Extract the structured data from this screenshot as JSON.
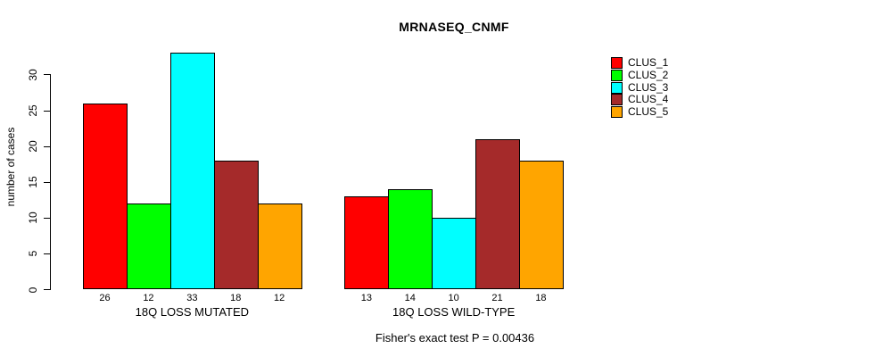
{
  "chart_data": {
    "type": "bar",
    "title": "MRNASEQ_CNMF",
    "ylabel": "number of cases",
    "ylim": [
      0,
      33
    ],
    "yticks": [
      0,
      5,
      10,
      15,
      20,
      25,
      30
    ],
    "grid": false,
    "legend_position": "top-right",
    "bar_value_labels": true,
    "categories": [
      "18Q LOSS MUTATED",
      "18Q LOSS WILD-TYPE"
    ],
    "series": [
      {
        "name": "CLUS_1",
        "color": "#FF0000",
        "values": [
          26,
          13
        ]
      },
      {
        "name": "CLUS_2",
        "color": "#00FF00",
        "values": [
          12,
          14
        ]
      },
      {
        "name": "CLUS_3",
        "color": "#00FFFF",
        "values": [
          33,
          10
        ]
      },
      {
        "name": "CLUS_4",
        "color": "#A52A2A",
        "values": [
          18,
          21
        ]
      },
      {
        "name": "CLUS_5",
        "color": "#FFA500",
        "values": [
          12,
          18
        ]
      }
    ],
    "annotation": "Fisher's exact test P = 0.00436",
    "axis_color": "#000000"
  }
}
